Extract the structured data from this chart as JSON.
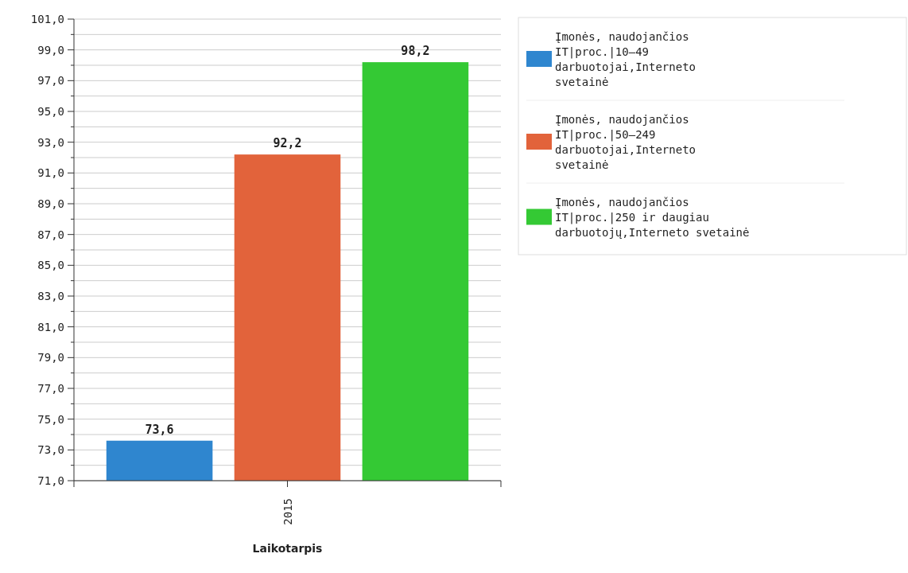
{
  "chart_data": {
    "type": "bar",
    "categories": [
      "2015"
    ],
    "xlabel": "Laikotarpis",
    "series": [
      {
        "name": "Įmonės, naudojančios IT|proc.|10–49 darbuotojai,Interneto svetainė",
        "color": "#2f86cf",
        "values": [
          73.6
        ],
        "value_labels": [
          "73,6"
        ]
      },
      {
        "name": "Įmonės, naudojančios IT|proc.|50–249 darbuotojai,Interneto svetainė",
        "color": "#e2633b",
        "values": [
          92.2
        ],
        "value_labels": [
          "92,2"
        ]
      },
      {
        "name": "Įmonės, naudojančios IT|proc.|250 ir daugiau darbuotojų,Interneto svetainė",
        "color": "#34c934",
        "values": [
          98.2
        ],
        "value_labels": [
          "98,2"
        ]
      }
    ],
    "ylim": [
      71,
      101
    ],
    "yticks": [
      {
        "value": 71,
        "label": "71,0"
      },
      {
        "value": 72,
        "label": null
      },
      {
        "value": 73,
        "label": "73,0"
      },
      {
        "value": 74,
        "label": null
      },
      {
        "value": 75,
        "label": "75,0"
      },
      {
        "value": 76,
        "label": null
      },
      {
        "value": 77,
        "label": "77,0"
      },
      {
        "value": 78,
        "label": null
      },
      {
        "value": 79,
        "label": "79,0"
      },
      {
        "value": 80,
        "label": null
      },
      {
        "value": 81,
        "label": "81,0"
      },
      {
        "value": 82,
        "label": null
      },
      {
        "value": 83,
        "label": "83,0"
      },
      {
        "value": 84,
        "label": null
      },
      {
        "value": 85,
        "label": "85,0"
      },
      {
        "value": 86,
        "label": null
      },
      {
        "value": 87,
        "label": "87,0"
      },
      {
        "value": 88,
        "label": null
      },
      {
        "value": 89,
        "label": "89,0"
      },
      {
        "value": 90,
        "label": null
      },
      {
        "value": 91,
        "label": "91,0"
      },
      {
        "value": 92,
        "label": null
      },
      {
        "value": 93,
        "label": "93,0"
      },
      {
        "value": 94,
        "label": null
      },
      {
        "value": 95,
        "label": "95,0"
      },
      {
        "value": 96,
        "label": null
      },
      {
        "value": 97,
        "label": "97,0"
      },
      {
        "value": 98,
        "label": null
      },
      {
        "value": 99,
        "label": "99,0"
      },
      {
        "value": 100,
        "label": null
      },
      {
        "value": 101,
        "label": "101,0"
      }
    ],
    "grid": "y",
    "legend": "right"
  }
}
